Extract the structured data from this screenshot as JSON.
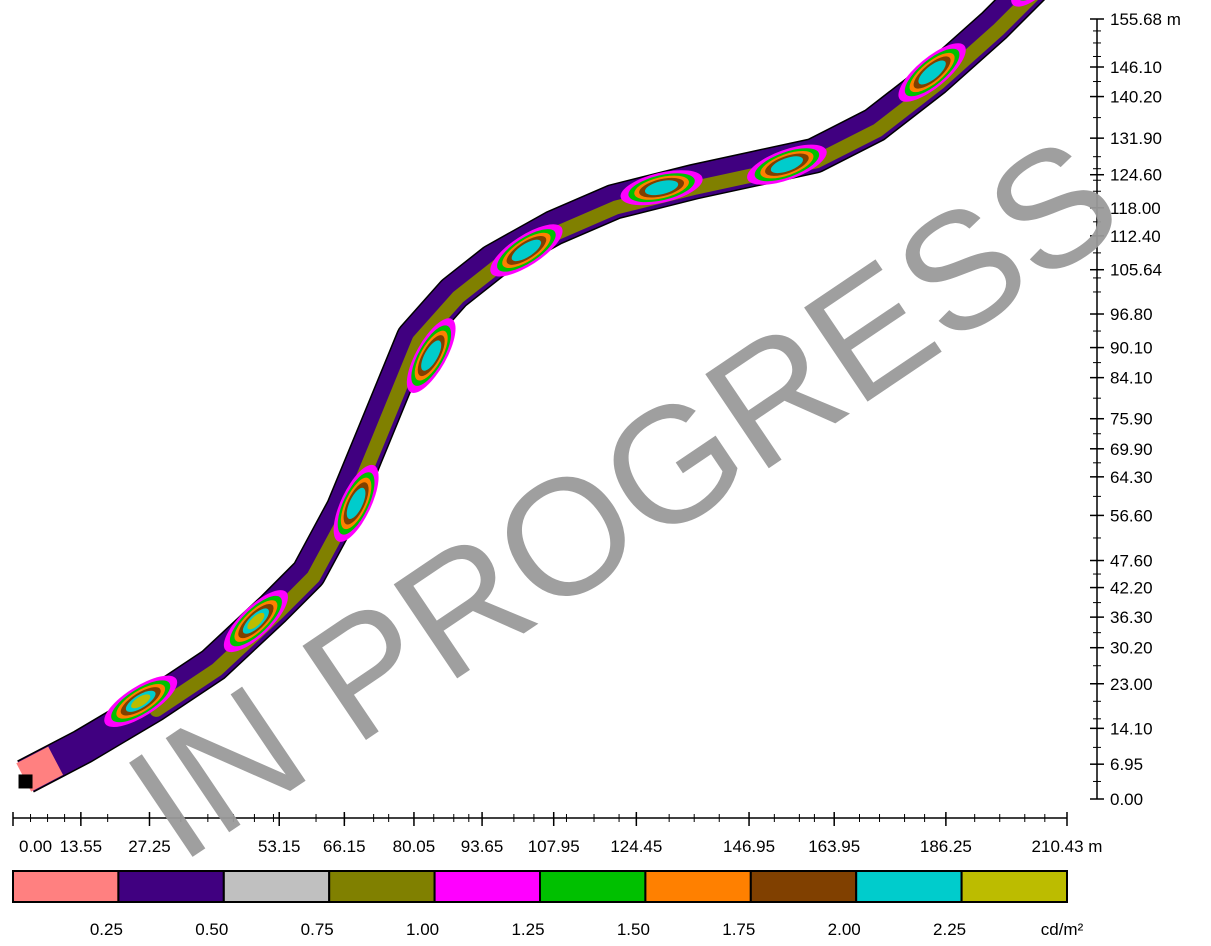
{
  "chart_data": {
    "type": "heatmap",
    "title": "",
    "watermark": "IN PROGRESS",
    "x_axis": {
      "unit": "m",
      "range": [
        0,
        210.43
      ],
      "tick_labels": [
        "0.00",
        "13.55",
        "27.25",
        "53.15",
        "66.15",
        "80.05",
        "93.65",
        "107.95",
        "124.45",
        "146.95",
        "163.95",
        "186.25",
        "210.43"
      ],
      "tick_values": [
        0,
        13.55,
        27.25,
        53.15,
        66.15,
        80.05,
        93.65,
        107.95,
        124.45,
        146.95,
        163.95,
        186.25,
        210.43
      ],
      "minor_ticks": [
        3.5,
        6.9,
        10.3,
        13.55,
        18.9,
        27.25,
        33.5,
        38.9,
        44.0,
        48.2,
        52.0,
        60.5,
        66.2,
        72.0,
        75.0,
        80.05,
        84.0,
        88.0,
        91.0,
        93.65,
        100.0,
        104.0,
        107.95,
        110.5,
        116.0,
        121.0,
        124.45,
        131.0,
        136.0,
        141.0,
        146.95,
        152.0,
        157.0,
        160.0,
        163.95,
        169.0,
        173.0,
        178.0,
        182.0,
        186.25,
        192.0,
        197.0,
        202.0,
        206.0,
        210.43
      ]
    },
    "y_axis": {
      "unit": "m",
      "range": [
        0,
        155.68
      ],
      "tick_labels": [
        "0.00",
        "6.95",
        "14.10",
        "23.00",
        "30.20",
        "36.30",
        "42.20",
        "47.60",
        "56.60",
        "64.30",
        "69.90",
        "75.90",
        "84.10",
        "90.10",
        "96.80",
        "105.64",
        "112.40",
        "118.00",
        "124.60",
        "131.90",
        "140.20",
        "146.10",
        "155.68"
      ],
      "tick_values": [
        0,
        6.95,
        14.1,
        23.0,
        30.2,
        36.3,
        42.2,
        47.6,
        56.6,
        64.3,
        69.9,
        75.9,
        84.1,
        90.1,
        96.8,
        105.64,
        112.4,
        118.0,
        124.6,
        131.9,
        140.2,
        146.1,
        155.68
      ],
      "minor_ticks": [
        3.5,
        10.3,
        16.0,
        19.5,
        26.6,
        33.2,
        39.2,
        44.9,
        52.1,
        60.4,
        67.1,
        72.9,
        80.0,
        87.1,
        93.4,
        101.2,
        104.0,
        109.0,
        115.2,
        121.3,
        123.5,
        125.8,
        128.2,
        136.0,
        143.2,
        148.2,
        150.9,
        153.3
      ]
    },
    "road_centerline": [
      [
        2.5,
        4.5
      ],
      [
        14,
        10.5
      ],
      [
        28,
        18.8
      ],
      [
        40,
        26.8
      ],
      [
        52,
        38
      ],
      [
        59,
        45
      ],
      [
        66,
        58
      ],
      [
        72,
        72.5
      ],
      [
        80,
        92
      ],
      [
        88,
        101
      ],
      [
        96,
        107.3
      ],
      [
        108,
        114
      ],
      [
        120,
        119.2
      ],
      [
        136,
        123.2
      ],
      [
        148,
        125.8
      ],
      [
        160,
        128.4
      ],
      [
        172,
        134.5
      ],
      [
        184,
        143.8
      ],
      [
        196,
        154.5
      ],
      [
        205,
        163.5
      ],
      [
        208.6,
        167.4
      ]
    ],
    "hotspots": [
      {
        "x": 25.5,
        "y": 19.5,
        "level": "2.25+"
      },
      {
        "x": 48.5,
        "y": 35.5,
        "level": "2.25+"
      },
      {
        "x": 68.5,
        "y": 59,
        "level": "2.00-2.25"
      },
      {
        "x": 83.5,
        "y": 88.5,
        "level": "2.00-2.25"
      },
      {
        "x": 102.5,
        "y": 109.5,
        "level": "2.00-2.25"
      },
      {
        "x": 129.5,
        "y": 122,
        "level": "2.00-2.25"
      },
      {
        "x": 154.5,
        "y": 126.6,
        "level": "2.00-2.25"
      },
      {
        "x": 183.5,
        "y": 145,
        "level": "2.00-2.25"
      },
      {
        "x": 205.5,
        "y": 164.5,
        "level": "2.00-2.25"
      }
    ],
    "observer_marker": {
      "x": 2.5,
      "y": 3.5
    },
    "legend": {
      "unit": "cd/m²",
      "labels": [
        "0.25",
        "0.50",
        "0.75",
        "1.00",
        "1.25",
        "1.50",
        "1.75",
        "2.00",
        "2.25"
      ],
      "colors": [
        "#ff8080",
        "#400080",
        "#c0c0c0",
        "#808000",
        "#ff00ff",
        "#00c000",
        "#ff8000",
        "#804000",
        "#00cccc",
        "#bcbc00"
      ]
    }
  }
}
